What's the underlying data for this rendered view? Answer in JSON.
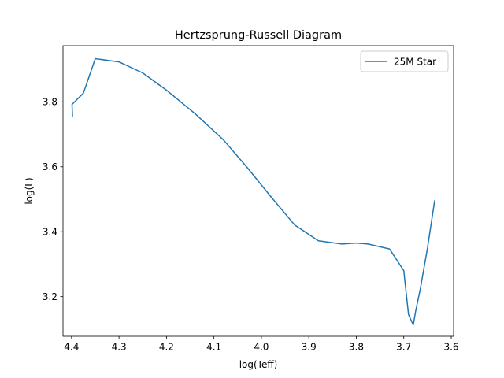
{
  "chart_data": {
    "type": "line",
    "title": "Hertzsprung-Russell Diagram",
    "xlabel": "log(Teff)",
    "ylabel": "log(L)",
    "x_inverted": true,
    "xlim": [
      4.418,
      3.595
    ],
    "ylim": [
      3.078,
      3.973
    ],
    "xticks": [
      {
        "value": 4.4,
        "label": "4.4"
      },
      {
        "value": 4.3,
        "label": "4.3"
      },
      {
        "value": 4.2,
        "label": "4.2"
      },
      {
        "value": 4.1,
        "label": "4.1"
      },
      {
        "value": 4.0,
        "label": "4.0"
      },
      {
        "value": 3.9,
        "label": "3.9"
      },
      {
        "value": 3.8,
        "label": "3.8"
      },
      {
        "value": 3.7,
        "label": "3.7"
      },
      {
        "value": 3.6,
        "label": "3.6"
      }
    ],
    "yticks": [
      {
        "value": 3.2,
        "label": "3.2"
      },
      {
        "value": 3.4,
        "label": "3.4"
      },
      {
        "value": 3.6,
        "label": "3.6"
      },
      {
        "value": 3.8,
        "label": "3.8"
      }
    ],
    "grid": false,
    "legend": {
      "placement": "top-right",
      "entries": [
        "25M Star"
      ]
    },
    "series": [
      {
        "name": "25M Star",
        "color": "#1f77b4",
        "x": [
          4.398,
          4.399,
          4.375,
          4.35,
          4.3,
          4.25,
          4.2,
          4.14,
          4.08,
          4.03,
          3.98,
          3.93,
          3.88,
          3.83,
          3.8,
          3.775,
          3.73,
          3.7,
          3.69,
          3.68,
          3.675,
          3.665,
          3.65,
          3.635
        ],
        "y": [
          3.757,
          3.792,
          3.827,
          3.933,
          3.923,
          3.889,
          3.836,
          3.764,
          3.683,
          3.598,
          3.508,
          3.421,
          3.372,
          3.362,
          3.365,
          3.362,
          3.347,
          3.28,
          3.145,
          3.113,
          3.155,
          3.225,
          3.35,
          3.495
        ]
      }
    ]
  }
}
